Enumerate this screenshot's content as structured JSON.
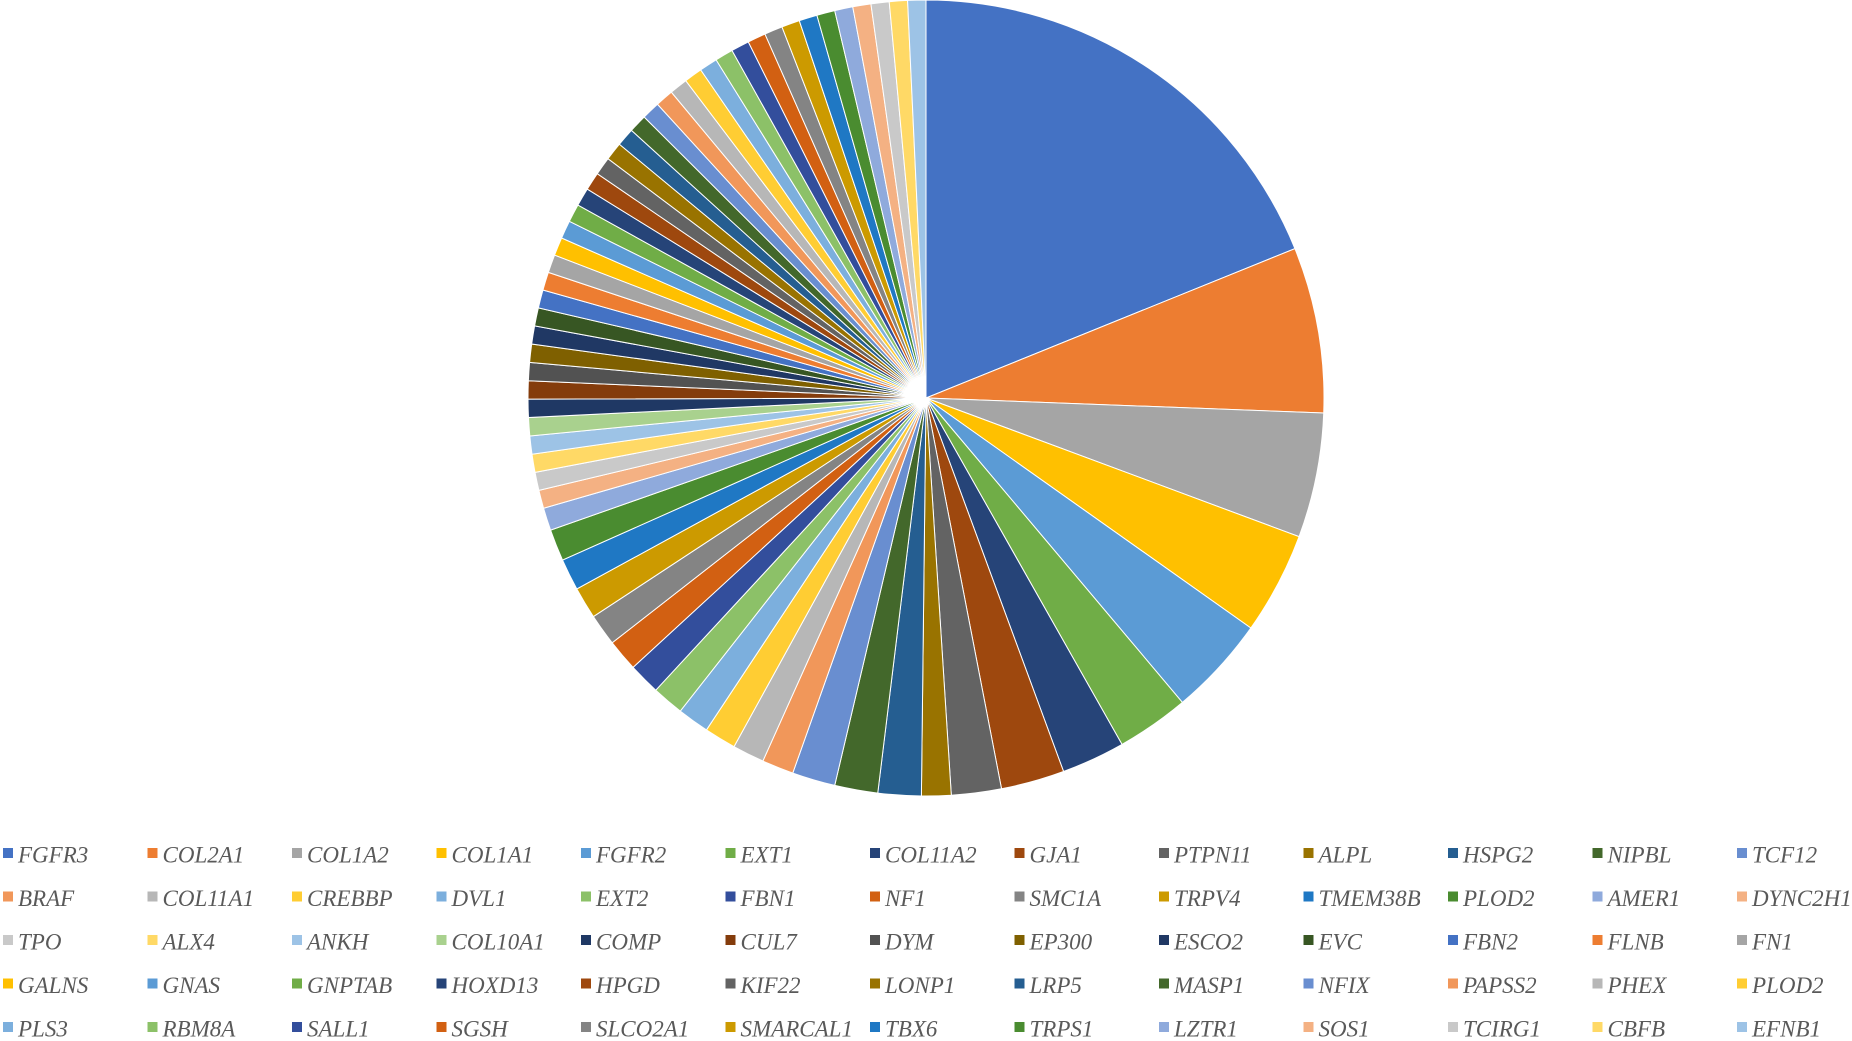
{
  "chart_data": {
    "type": "pie",
    "legend_position": "bottom",
    "palette": [
      "#4472C4",
      "#ED7D31",
      "#A5A5A5",
      "#FFC000",
      "#5B9BD5",
      "#70AD47",
      "#264478",
      "#9E480E",
      "#636363",
      "#997300",
      "#255E91",
      "#43682B",
      "#698ED0",
      "#F1975A",
      "#B7B7B7",
      "#FFCD33",
      "#7CAFDD",
      "#8CC168",
      "#334E9C",
      "#D26012",
      "#848484",
      "#CC9A00",
      "#1F78C4",
      "#4A8C30",
      "#8FAADC",
      "#F4B183",
      "#C9C9C9",
      "#FFD966",
      "#9DC3E6",
      "#A9D18E",
      "#1F3864",
      "#843C0C",
      "#525252",
      "#7F6000",
      "#203864",
      "#375623"
    ],
    "slices": [
      {
        "label": "FGFR3",
        "value": 20.5
      },
      {
        "label": "COL2A1",
        "value": 7.3
      },
      {
        "label": "COL1A2",
        "value": 5.5
      },
      {
        "label": "COL1A1",
        "value": 4.5
      },
      {
        "label": "FGFR2",
        "value": 4.4
      },
      {
        "label": "EXT1",
        "value": 3.2
      },
      {
        "label": "COL11A2",
        "value": 2.8
      },
      {
        "label": "GJA1",
        "value": 2.8
      },
      {
        "label": "PTPN11",
        "value": 2.2
      },
      {
        "label": "ALPL",
        "value": 1.3
      },
      {
        "label": "HSPG2",
        "value": 1.9
      },
      {
        "label": "NIPBL",
        "value": 1.9
      },
      {
        "label": "TCF12",
        "value": 1.9
      },
      {
        "label": "BRAF",
        "value": 1.4
      },
      {
        "label": "COL11A1",
        "value": 1.4
      },
      {
        "label": "CREBBP",
        "value": 1.4
      },
      {
        "label": "DVL1",
        "value": 1.4
      },
      {
        "label": "EXT2",
        "value": 1.4
      },
      {
        "label": "FBN1",
        "value": 1.4
      },
      {
        "label": "NF1",
        "value": 1.4
      },
      {
        "label": "SMC1A",
        "value": 1.4
      },
      {
        "label": "TRPV4",
        "value": 1.4
      },
      {
        "label": "TMEM38B",
        "value": 1.4
      },
      {
        "label": "PLOD2",
        "value": 1.4
      },
      {
        "label": "AMER1",
        "value": 1.0
      },
      {
        "label": "DYNC2H1",
        "value": 0.8
      },
      {
        "label": "TPO",
        "value": 0.8
      },
      {
        "label": "ALX4",
        "value": 0.8
      },
      {
        "label": "ANKH",
        "value": 0.8
      },
      {
        "label": "COL10A1",
        "value": 0.8
      },
      {
        "label": "COMP",
        "value": 0.8
      },
      {
        "label": "CUL7",
        "value": 0.8
      },
      {
        "label": "DYM",
        "value": 0.8
      },
      {
        "label": "EP300",
        "value": 0.8
      },
      {
        "label": "ESCO2",
        "value": 0.8
      },
      {
        "label": "EVC",
        "value": 0.8
      },
      {
        "label": "FBN2",
        "value": 0.8
      },
      {
        "label": "FLNB",
        "value": 0.8
      },
      {
        "label": "FN1",
        "value": 0.8
      },
      {
        "label": "GALNS",
        "value": 0.8
      },
      {
        "label": "GNAS",
        "value": 0.8
      },
      {
        "label": "GNPTAB",
        "value": 0.8
      },
      {
        "label": "HOXD13",
        "value": 0.8
      },
      {
        "label": "HPGD",
        "value": 0.8
      },
      {
        "label": "KIF22",
        "value": 0.8
      },
      {
        "label": "LONP1",
        "value": 0.8
      },
      {
        "label": "LRP5",
        "value": 0.8
      },
      {
        "label": "MASP1",
        "value": 0.8
      },
      {
        "label": "NFIX",
        "value": 0.8
      },
      {
        "label": "PAPSS2",
        "value": 0.8
      },
      {
        "label": "PHEX",
        "value": 0.8
      },
      {
        "label": "PLOD2",
        "value": 0.8
      },
      {
        "label": "PLS3",
        "value": 0.8
      },
      {
        "label": "RBM8A",
        "value": 0.8
      },
      {
        "label": "SALL1",
        "value": 0.8
      },
      {
        "label": "SGSH",
        "value": 0.8
      },
      {
        "label": "SLCO2A1",
        "value": 0.8
      },
      {
        "label": "SMARCAL1",
        "value": 0.8
      },
      {
        "label": "TBX6",
        "value": 0.8
      },
      {
        "label": "TRPS1",
        "value": 0.8
      },
      {
        "label": "LZTR1",
        "value": 0.8
      },
      {
        "label": "SOS1",
        "value": 0.8
      },
      {
        "label": "TCIRG1",
        "value": 0.8
      },
      {
        "label": "CBFB",
        "value": 0.8
      },
      {
        "label": "EFNB1",
        "value": 0.8
      }
    ]
  }
}
